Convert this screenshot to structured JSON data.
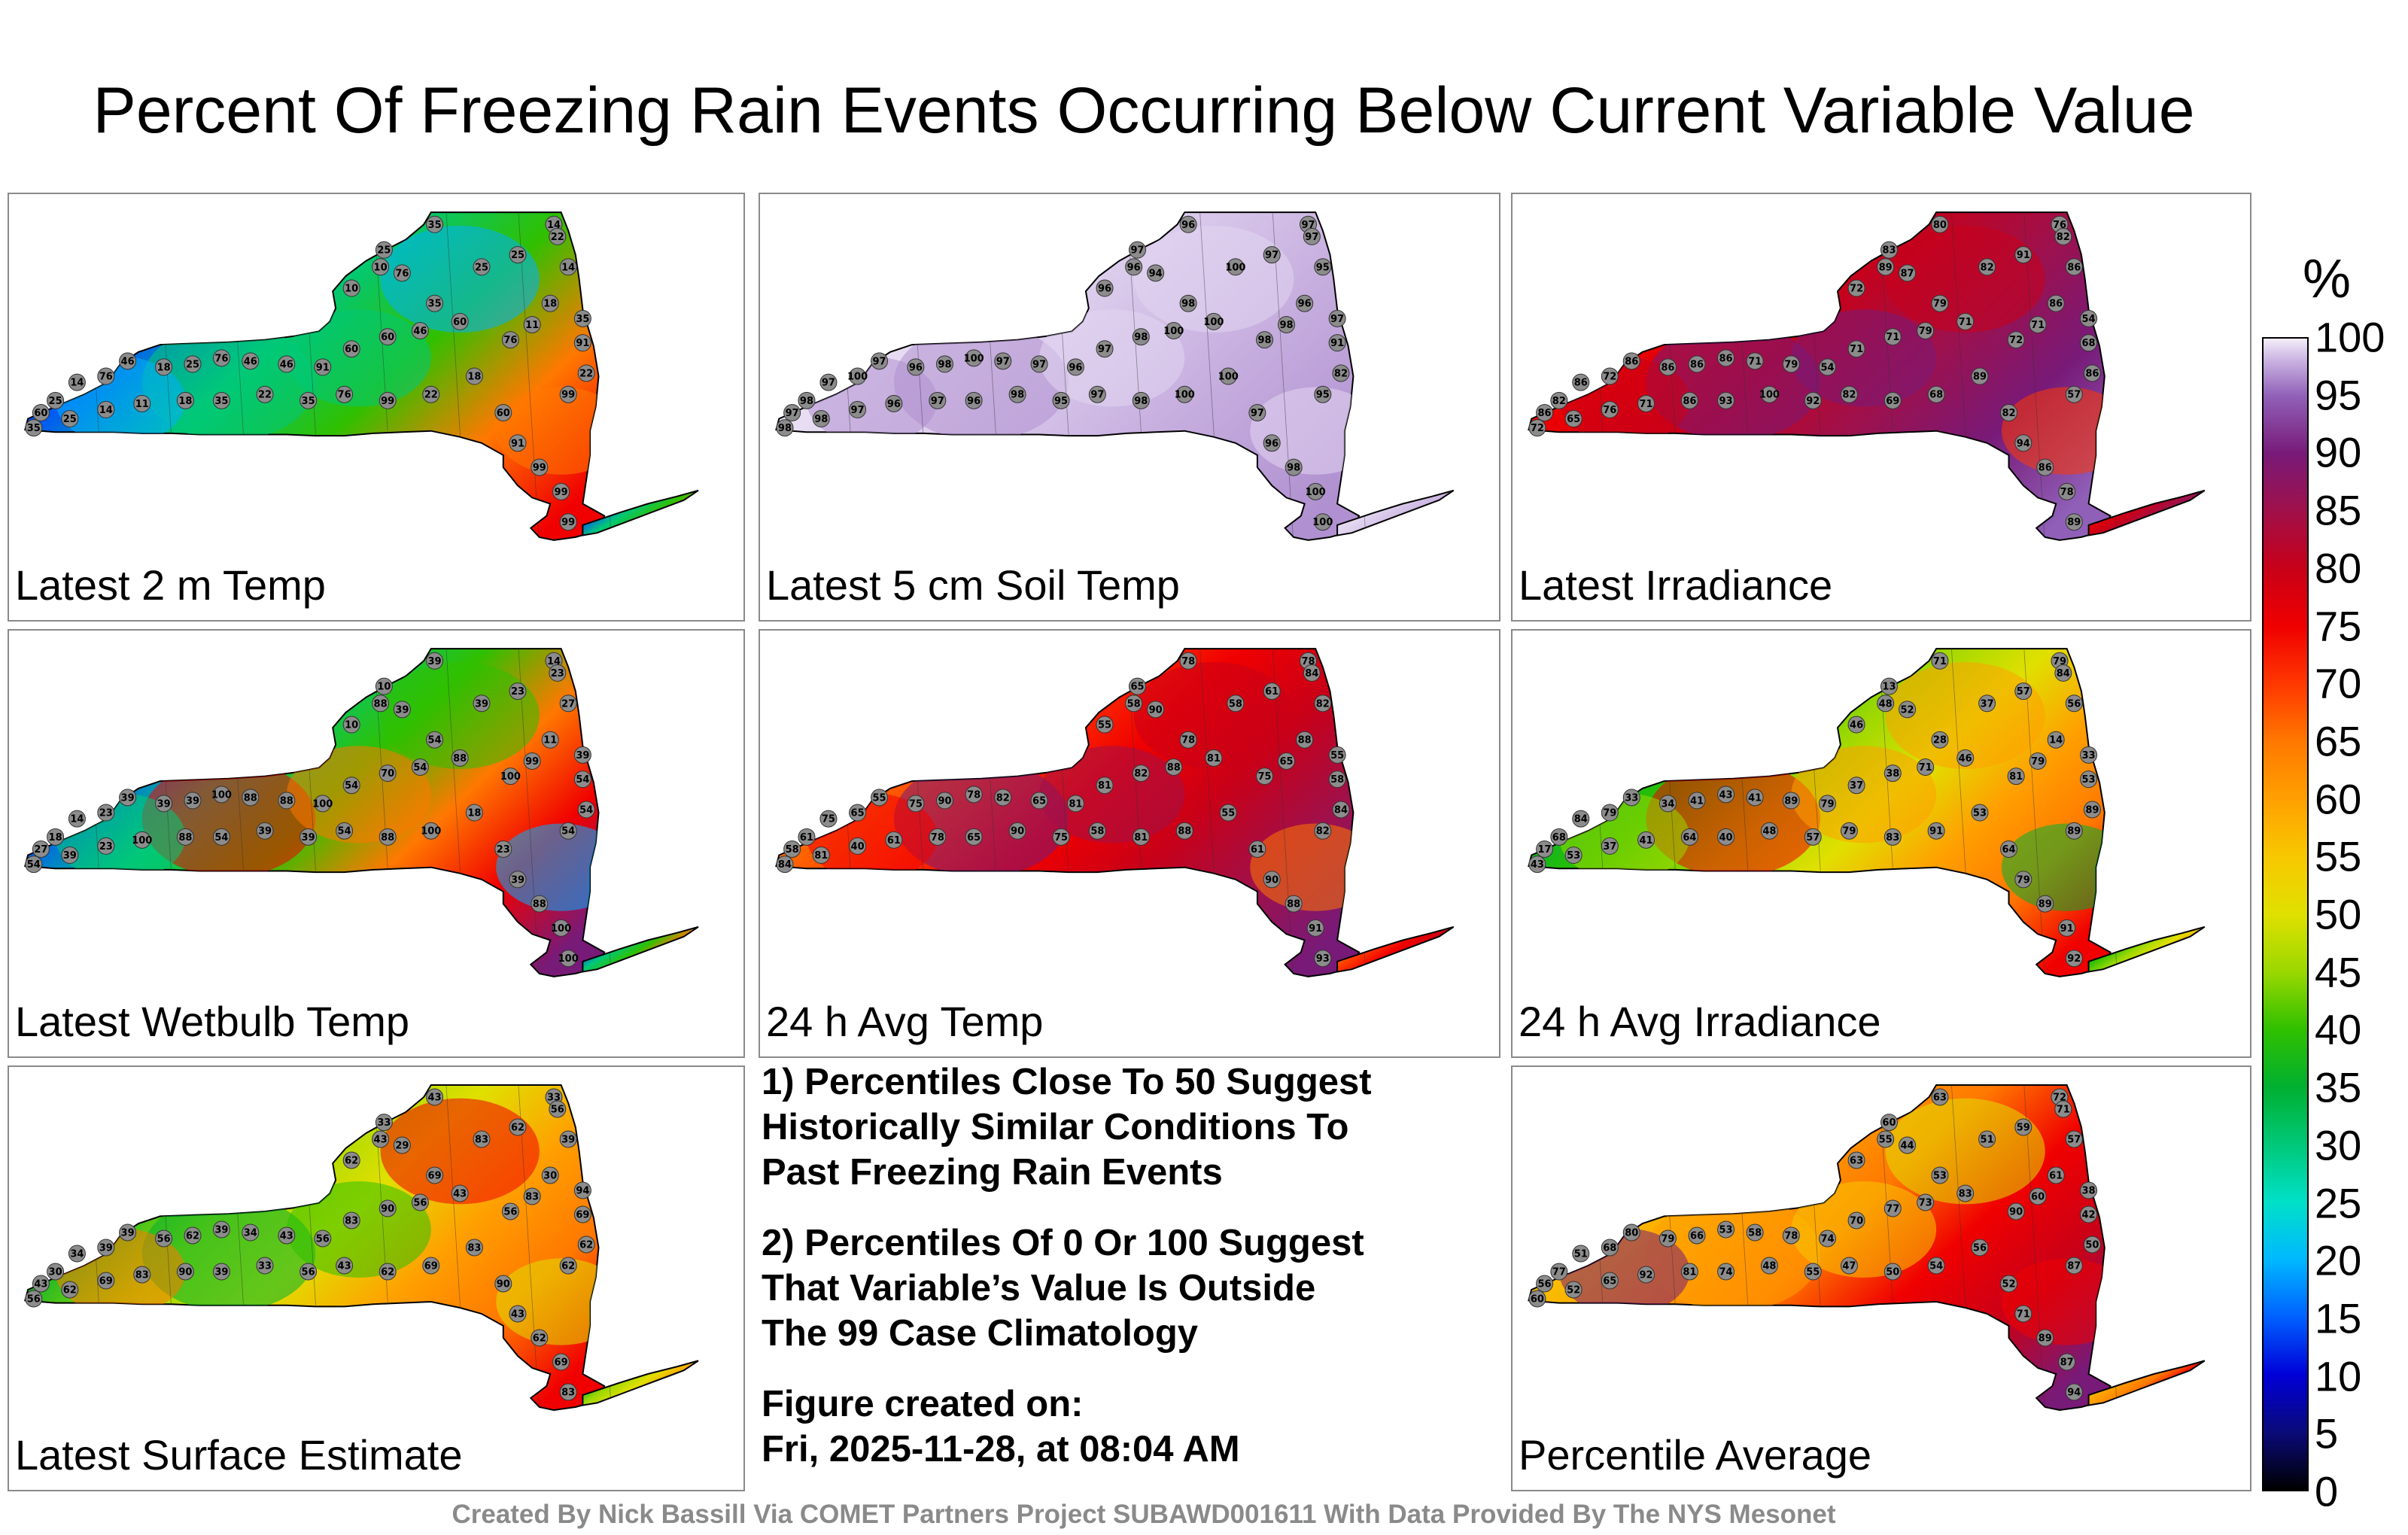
{
  "title": "Percent Of Freezing Rain Events Occurring Below Current Variable Value",
  "panels": [
    {
      "label": "Latest 2 m Temp",
      "colors": [
        "#00b0ff",
        "#0050ff",
        "#00c878",
        "#30c000",
        "#ff7800",
        "#f00000"
      ],
      "stations": [
        "35",
        "14",
        "22",
        "14",
        "25",
        "10",
        "10",
        "76",
        "35",
        "25",
        "25",
        "18",
        "11",
        "35",
        "91",
        "22",
        "99",
        "76",
        "60",
        "46",
        "60",
        "60",
        "91",
        "46",
        "46",
        "76",
        "25",
        "18",
        "46",
        "76",
        "14",
        "25",
        "60",
        "35",
        "25",
        "14",
        "11",
        "18",
        "35",
        "22",
        "35",
        "76",
        "99",
        "22",
        "18",
        "60",
        "91",
        "99",
        "99",
        "99"
      ]
    },
    {
      "label": "Latest 5 cm Soil Temp",
      "colors": [
        "#f4eefa",
        "#e2d6f0",
        "#c8b0e0",
        "#b090d0"
      ],
      "stations": [
        "96",
        "97",
        "97",
        "95",
        "97",
        "96",
        "96",
        "94",
        "98",
        "100",
        "97",
        "96",
        "98",
        "97",
        "91",
        "82",
        "95",
        "98",
        "100",
        "100",
        "98",
        "97",
        "96",
        "97",
        "97",
        "100",
        "98",
        "96",
        "97",
        "100",
        "97",
        "98",
        "97",
        "98",
        "98",
        "97",
        "96",
        "97",
        "96",
        "98",
        "95",
        "97",
        "98",
        "100",
        "100",
        "97",
        "96",
        "98",
        "100",
        "100"
      ]
    },
    {
      "label": "Latest Irradiance",
      "colors": [
        "#ff3800",
        "#f00000",
        "#c80018",
        "#a0104a",
        "#781a78",
        "#9060b8"
      ],
      "stations": [
        "80",
        "76",
        "82",
        "86",
        "83",
        "72",
        "89",
        "87",
        "79",
        "82",
        "91",
        "86",
        "71",
        "54",
        "68",
        "86",
        "57",
        "72",
        "71",
        "79",
        "71",
        "71",
        "54",
        "79",
        "71",
        "86",
        "86",
        "86",
        "86",
        "72",
        "86",
        "82",
        "86",
        "72",
        "65",
        "76",
        "71",
        "86",
        "93",
        "100",
        "92",
        "82",
        "69",
        "68",
        "89",
        "82",
        "94",
        "86",
        "78",
        "89"
      ]
    },
    {
      "label": "Latest Wetbulb Temp",
      "colors": [
        "#00b0ff",
        "#0050ff",
        "#00c878",
        "#30c000",
        "#ff7800",
        "#f00000",
        "#781a78"
      ],
      "stations": [
        "39",
        "14",
        "23",
        "27",
        "10",
        "10",
        "88",
        "39",
        "54",
        "39",
        "23",
        "11",
        "99",
        "39",
        "54",
        "54",
        "54",
        "100",
        "88",
        "54",
        "70",
        "54",
        "100",
        "88",
        "88",
        "100",
        "39",
        "39",
        "39",
        "23",
        "14",
        "18",
        "27",
        "54",
        "39",
        "23",
        "100",
        "88",
        "54",
        "39",
        "39",
        "54",
        "88",
        "100",
        "18",
        "23",
        "39",
        "88",
        "100",
        "100"
      ]
    },
    {
      "label": "24 h Avg Temp",
      "colors": [
        "#ffa000",
        "#ff7800",
        "#ff3800",
        "#f00000",
        "#c80018",
        "#a0104a",
        "#781a78"
      ],
      "stations": [
        "78",
        "78",
        "84",
        "82",
        "65",
        "55",
        "58",
        "90",
        "78",
        "58",
        "61",
        "88",
        "65",
        "55",
        "58",
        "84",
        "82",
        "75",
        "81",
        "88",
        "82",
        "81",
        "81",
        "65",
        "82",
        "78",
        "90",
        "75",
        "55",
        "65",
        "75",
        "61",
        "58",
        "84",
        "81",
        "40",
        "61",
        "78",
        "65",
        "90",
        "75",
        "58",
        "81",
        "88",
        "55",
        "61",
        "90",
        "88",
        "91",
        "93"
      ]
    },
    {
      "label": "24 h Avg Irradiance",
      "colors": [
        "#00e0c8",
        "#00b030",
        "#30c000",
        "#9ad800",
        "#e0e000",
        "#ffa000",
        "#ff7800",
        "#f00000"
      ],
      "stations": [
        "71",
        "79",
        "84",
        "56",
        "13",
        "46",
        "48",
        "52",
        "28",
        "37",
        "57",
        "14",
        "79",
        "33",
        "53",
        "89",
        "89",
        "81",
        "46",
        "71",
        "38",
        "37",
        "79",
        "89",
        "41",
        "43",
        "41",
        "34",
        "33",
        "79",
        "84",
        "68",
        "17",
        "43",
        "53",
        "37",
        "41",
        "64",
        "40",
        "48",
        "57",
        "79",
        "83",
        "91",
        "53",
        "64",
        "79",
        "89",
        "91",
        "92"
      ]
    },
    {
      "label": "Latest Surface Estimate",
      "colors": [
        "#30c000",
        "#00b030",
        "#9ad800",
        "#e0e000",
        "#ffa000",
        "#ff7800",
        "#f00000"
      ],
      "stations": [
        "43",
        "33",
        "56",
        "39",
        "33",
        "62",
        "43",
        "29",
        "69",
        "83",
        "62",
        "30",
        "83",
        "94",
        "69",
        "62",
        "62",
        "56",
        "43",
        "56",
        "90",
        "83",
        "56",
        "43",
        "34",
        "39",
        "62",
        "56",
        "39",
        "39",
        "34",
        "30",
        "43",
        "56",
        "62",
        "69",
        "83",
        "90",
        "39",
        "33",
        "56",
        "43",
        "62",
        "69",
        "83",
        "90",
        "43",
        "62",
        "69",
        "83"
      ]
    },
    {
      "label": "Percentile Average",
      "colors": [
        "#e0e000",
        "#f8c800",
        "#ffa000",
        "#ff7800",
        "#f00000",
        "#c80018",
        "#781a78"
      ],
      "stations": [
        "63",
        "72",
        "71",
        "57",
        "60",
        "63",
        "55",
        "44",
        "53",
        "51",
        "59",
        "61",
        "60",
        "38",
        "42",
        "50",
        "87",
        "90",
        "83",
        "73",
        "77",
        "70",
        "74",
        "78",
        "58",
        "53",
        "66",
        "79",
        "80",
        "68",
        "51",
        "77",
        "56",
        "60",
        "52",
        "65",
        "92",
        "81",
        "74",
        "48",
        "55",
        "47",
        "50",
        "54",
        "56",
        "52",
        "71",
        "89",
        "87",
        "94"
      ]
    }
  ],
  "notes": {
    "note1": "1) Percentiles Close To 50 Suggest\nHistorically Similar Conditions To\nPast Freezing Rain Events",
    "note2": "2) Percentiles Of 0 Or 100 Suggest\nThat Variable’s Value Is Outside\nThe 99 Case Climatology",
    "created_label": "Figure created on:",
    "created_time": "Fri, 2025-11-28, at 08:04 AM"
  },
  "colorbar": {
    "unit": "%",
    "ticks": [
      "0",
      "5",
      "10",
      "15",
      "20",
      "25",
      "30",
      "35",
      "40",
      "45",
      "50",
      "55",
      "60",
      "65",
      "70",
      "75",
      "80",
      "85",
      "90",
      "95",
      "100"
    ]
  },
  "credit": "Created By Nick Bassill Via COMET Partners Project SUBAWD001611 With Data Provided By The NYS Mesonet"
}
